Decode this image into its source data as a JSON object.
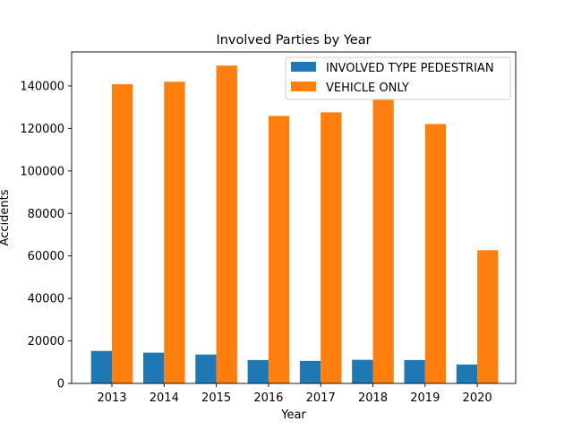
{
  "chart_data": {
    "type": "bar",
    "title": "Involved Parties by Year",
    "xlabel": "Year",
    "ylabel": "Accidents",
    "categories": [
      "2013",
      "2014",
      "2015",
      "2016",
      "2017",
      "2018",
      "2019",
      "2020"
    ],
    "series": [
      {
        "name": "INVOLVED TYPE PEDESTRIAN",
        "color": "#1f77b4",
        "values": [
          15300,
          14500,
          13600,
          11000,
          10600,
          11100,
          11000,
          8900
        ]
      },
      {
        "name": "VEHICLE ONLY",
        "color": "#ff7f0e",
        "values": [
          140800,
          142000,
          149600,
          125900,
          127600,
          133500,
          122100,
          62700
        ]
      }
    ],
    "ylim": [
      0,
      156000
    ],
    "yticks": [
      0,
      20000,
      40000,
      60000,
      80000,
      100000,
      120000,
      140000
    ],
    "grid": false,
    "legend_position": "top-right"
  }
}
